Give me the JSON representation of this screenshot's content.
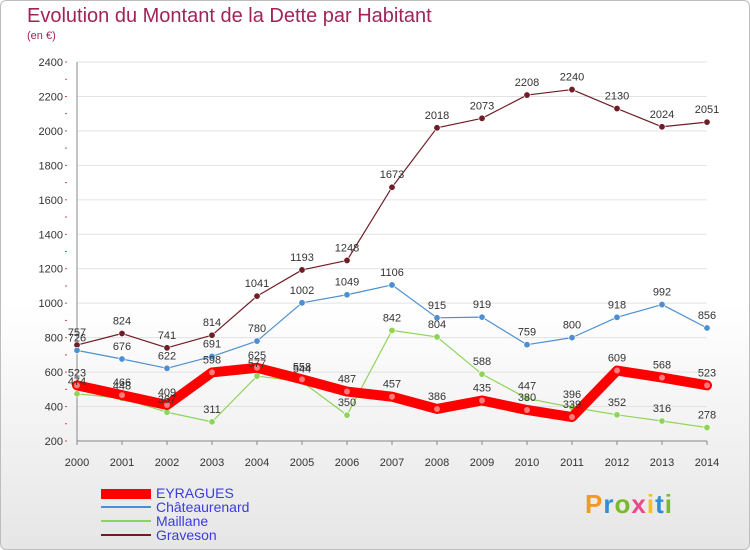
{
  "header": {
    "title": "Evolution du Montant de la Dette par Habitant",
    "subtitle": "(en €)"
  },
  "brand": {
    "text": "Proxiti",
    "colors": [
      "#f39a1e",
      "#2f8fd6",
      "#7ab929",
      "#e84a8a",
      "#f2c31b",
      "#2f8fd6",
      "#7ab929"
    ]
  },
  "chart_data": {
    "type": "line",
    "categories": [
      "2000",
      "2001",
      "2002",
      "2003",
      "2004",
      "2005",
      "2006",
      "2007",
      "2008",
      "2009",
      "2010",
      "2011",
      "2012",
      "2013",
      "2014"
    ],
    "ylim": [
      200,
      2400
    ],
    "yticks": [
      200,
      400,
      600,
      800,
      1000,
      1200,
      1400,
      1600,
      1800,
      2000,
      2200,
      2400
    ],
    "grid": "horizontal",
    "legend_position": "bottom-left",
    "series": [
      {
        "name": "Graveson",
        "color": "#6e1e26",
        "values": [
          757,
          824,
          741,
          814,
          1041,
          1193,
          1248,
          1673,
          2018,
          2073,
          2208,
          2240,
          2130,
          2024,
          2051
        ]
      },
      {
        "name": "Châteaurenard",
        "color": "#4d8fd0",
        "values": [
          726,
          676,
          622,
          691,
          780,
          1002,
          1049,
          1106,
          915,
          919,
          759,
          800,
          918,
          992,
          856
        ]
      },
      {
        "name": "Maillane",
        "color": "#8ed45a",
        "values": [
          474,
          448,
          367,
          311,
          577,
          544,
          350,
          842,
          804,
          588,
          447,
          396,
          352,
          316,
          278
        ]
      },
      {
        "name": "EYRAGUES",
        "color": "#ff0000",
        "values": [
          523,
          466,
          409,
          598,
          625,
          558,
          487,
          457,
          386,
          435,
          380,
          339,
          609,
          568,
          523
        ]
      }
    ]
  }
}
